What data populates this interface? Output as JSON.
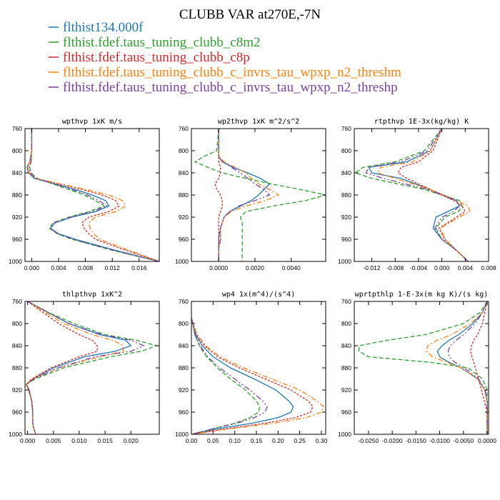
{
  "title": "CLUBB VAR at270E,-7N",
  "legend": [
    {
      "name": "flthist134.000f",
      "color": "#1f77b4"
    },
    {
      "name": "flthist.fdef.taus_tuning_clubb_c8m2",
      "color": "#2ca02c"
    },
    {
      "name": "flthist.fdef.taus_tuning_clubb_c8p",
      "color": "#d62728"
    },
    {
      "name": "flthist.fdef.taus_tuning_clubb_c_invrs_tau_wpxp_n2_threshm",
      "color": "#ff7f0e"
    },
    {
      "name": "flthist.fdef.taus_tuning_clubb_c_invrs_tau_wpxp_n2_threshp",
      "color": "#7b3fa0"
    }
  ],
  "chart_data": [
    {
      "type": "line",
      "title": "wpthvp  1xK m/s",
      "xlim": [
        -0.001,
        0.019
      ],
      "ylim": [
        760,
        1000
      ],
      "xticks": [
        0,
        0.004,
        0.008,
        0.012,
        0.016
      ],
      "xtick_labels": [
        "0.000",
        "0.004",
        "0.008",
        "0.012",
        "0.016"
      ],
      "yticks": [
        760,
        800,
        840,
        880,
        920,
        960,
        1000
      ],
      "y": [
        760,
        800,
        820,
        830,
        840,
        850,
        870,
        880,
        890,
        900,
        910,
        920,
        930,
        940,
        950,
        960,
        980,
        1000
      ],
      "series": [
        {
          "values": [
            0.0,
            0.0,
            -0.0003,
            -0.0007,
            -0.0005,
            0.0004,
            0.0065,
            0.009,
            0.011,
            0.0115,
            0.0095,
            0.006,
            0.0035,
            0.0028,
            0.004,
            0.0065,
            0.0125,
            0.019
          ]
        },
        {
          "values": [
            0.0,
            0.0,
            -0.0001,
            -0.0003,
            -0.0001,
            0.0008,
            0.0055,
            0.0078,
            0.0095,
            0.0108,
            0.0085,
            0.0055,
            0.0032,
            0.0026,
            0.0038,
            0.006,
            0.012,
            0.019
          ]
        },
        {
          "values": [
            0.0,
            0.0,
            -0.0003,
            -0.0006,
            -0.0004,
            0.0006,
            0.0075,
            0.0105,
            0.0125,
            0.013,
            0.0115,
            0.0085,
            0.0075,
            0.0078,
            0.0085,
            0.0095,
            0.014,
            0.019
          ]
        },
        {
          "values": [
            0.0,
            0.0,
            -0.0003,
            -0.0006,
            -0.0004,
            0.0006,
            0.008,
            0.0115,
            0.0135,
            0.014,
            0.0125,
            0.0095,
            0.0085,
            0.0087,
            0.0092,
            0.0102,
            0.0145,
            0.019
          ]
        },
        {
          "values": [
            0.0,
            0.0,
            -0.0001,
            -0.0004,
            -0.0002,
            0.0007,
            0.006,
            0.0083,
            0.01,
            0.0112,
            0.009,
            0.0058,
            0.0034,
            0.0027,
            0.0039,
            0.0062,
            0.0122,
            0.019
          ]
        }
      ]
    },
    {
      "type": "line",
      "title": "wp2thvp  1xK m^2/s^2",
      "xlim": [
        -0.0015,
        0.0059
      ],
      "ylim": [
        760,
        1000
      ],
      "xticks": [
        0,
        0.002,
        0.004
      ],
      "xtick_labels": [
        "0.0000",
        "0.0020",
        "0.0040"
      ],
      "yticks": [
        760,
        800,
        840,
        880,
        920,
        960,
        1000
      ],
      "y": [
        760,
        800,
        810,
        820,
        830,
        840,
        850,
        860,
        870,
        880,
        890,
        900,
        910,
        920,
        930,
        940,
        960,
        980,
        1000
      ],
      "series": [
        {
          "values": [
            0.0,
            0.0,
            0.0,
            0.0002,
            0.0008,
            0.0016,
            0.0023,
            0.0028,
            0.0025,
            0.0022,
            0.0018,
            0.0012,
            0.0006,
            0.0003,
            0.0002,
            0.0001,
            0.0,
            0.0,
            0.0
          ]
        },
        {
          "values": [
            0.0,
            -0.0001,
            -0.0008,
            -0.0013,
            -0.0006,
            0.0002,
            0.0015,
            0.0029,
            0.0045,
            0.0059,
            0.0048,
            0.003,
            0.0015,
            0.0012,
            0.0013,
            0.0013,
            0.0013,
            0.0013,
            0.0013
          ]
        },
        {
          "values": [
            0.0,
            0.0,
            0.0,
            0.0,
            0.0001,
            0.0001,
            0.0,
            -0.0002,
            -0.0001,
            0.0001,
            0.0002,
            0.0002,
            0.0001,
            0.0,
            0.0,
            0.0,
            0.0,
            0.0,
            0.0
          ]
        },
        {
          "values": [
            0.0,
            0.0,
            0.0,
            0.0003,
            0.0009,
            0.0015,
            0.0018,
            0.0022,
            0.0028,
            0.0033,
            0.0026,
            0.0015,
            0.0007,
            0.0003,
            0.0002,
            0.0001,
            0.0001,
            0.0,
            0.0
          ]
        },
        {
          "values": [
            0.0,
            0.0,
            0.0,
            0.0002,
            0.0007,
            0.0012,
            0.0016,
            0.002,
            0.0025,
            0.0028,
            0.002,
            0.0011,
            0.0006,
            0.0003,
            0.0002,
            0.0001,
            0.0001,
            0.0,
            0.0
          ]
        }
      ]
    },
    {
      "type": "line",
      "title": "rtpthvp  1E-3x(kg/kg) K",
      "xlim": [
        -0.015,
        0.008
      ],
      "ylim": [
        760,
        1000
      ],
      "xticks": [
        -0.012,
        -0.008,
        -0.004,
        0,
        0.004,
        0.008
      ],
      "xtick_labels": [
        "-0.012",
        "-0.008",
        "-0.004",
        "0.000",
        "0.004",
        "0.008"
      ],
      "yticks": [
        760,
        800,
        840,
        880,
        920,
        960,
        1000
      ],
      "y": [
        760,
        800,
        820,
        830,
        840,
        850,
        870,
        890,
        900,
        910,
        920,
        940,
        960,
        980,
        1000
      ],
      "series": [
        {
          "values": [
            0.0,
            -0.002,
            -0.006,
            -0.0125,
            -0.012,
            -0.007,
            -0.002,
            0.0025,
            0.003,
            0.001,
            -0.001,
            -0.0015,
            0.0,
            0.0025,
            0.0045
          ]
        },
        {
          "values": [
            0.0,
            -0.003,
            -0.008,
            -0.0135,
            -0.0148,
            -0.012,
            -0.003,
            0.003,
            0.0035,
            0.0028,
            0.0005,
            -0.001,
            0.0,
            0.0025,
            0.0045
          ]
        },
        {
          "values": [
            0.0,
            -0.0015,
            -0.004,
            -0.007,
            -0.0075,
            -0.006,
            -0.002,
            0.002,
            0.0035,
            0.004,
            0.0025,
            -0.0005,
            0.0005,
            0.0025,
            0.0045
          ]
        },
        {
          "values": [
            0.0,
            -0.002,
            -0.005,
            -0.0105,
            -0.011,
            -0.008,
            -0.002,
            0.0025,
            0.0045,
            0.0048,
            0.003,
            -0.0003,
            0.0006,
            0.0025,
            0.0045
          ]
        },
        {
          "values": [
            0.0,
            -0.0025,
            -0.007,
            -0.0125,
            -0.013,
            -0.01,
            -0.0025,
            0.0025,
            0.003,
            0.002,
            0.0,
            -0.0012,
            0.0,
            0.0025,
            0.0045
          ]
        }
      ]
    },
    {
      "type": "line",
      "title": "thlpthvp  1xK^2",
      "xlim": [
        -0.0005,
        0.0255
      ],
      "ylim": [
        760,
        1000
      ],
      "xticks": [
        0,
        0.005,
        0.01,
        0.015,
        0.02
      ],
      "xtick_labels": [
        "0.000",
        "0.005",
        "0.010",
        "0.015",
        "0.020"
      ],
      "yticks": [
        760,
        800,
        840,
        880,
        920,
        960,
        1000
      ],
      "y": [
        760,
        780,
        800,
        820,
        830,
        840,
        850,
        860,
        880,
        900,
        910,
        920,
        940,
        960,
        980,
        990,
        1000
      ],
      "series": [
        {
          "values": [
            0.0,
            0.004,
            0.008,
            0.014,
            0.019,
            0.02,
            0.017,
            0.011,
            0.005,
            0.001,
            -0.0002,
            0.0003,
            0.0008,
            0.001,
            0.001,
            0.0012,
            0.0016
          ]
        },
        {
          "values": [
            0.0,
            0.004,
            0.009,
            0.015,
            0.021,
            0.025,
            0.022,
            0.016,
            0.007,
            0.0015,
            -0.0003,
            0.0002,
            0.0008,
            0.001,
            0.001,
            0.0012,
            0.0016
          ]
        },
        {
          "values": [
            0.0,
            0.003,
            0.006,
            0.01,
            0.0125,
            0.0135,
            0.0135,
            0.01,
            0.0045,
            0.0008,
            -0.0003,
            0.0002,
            0.0008,
            0.001,
            0.001,
            0.0012,
            0.0016
          ]
        },
        {
          "values": [
            0.0,
            0.0035,
            0.007,
            0.0125,
            0.0165,
            0.0185,
            0.0185,
            0.014,
            0.006,
            0.001,
            -0.0003,
            0.0002,
            0.0008,
            0.001,
            0.001,
            0.0012,
            0.0016
          ]
        },
        {
          "values": [
            0.0,
            0.004,
            0.008,
            0.0145,
            0.02,
            0.0225,
            0.02,
            0.013,
            0.006,
            0.0012,
            -0.0002,
            0.0003,
            0.0008,
            0.001,
            0.001,
            0.0012,
            0.0016
          ]
        }
      ]
    },
    {
      "type": "line",
      "title": "wp4  1x(m^4)/(s^4)",
      "xlim": [
        0,
        0.31
      ],
      "ylim": [
        760,
        1000
      ],
      "xticks": [
        0,
        0.05,
        0.1,
        0.15,
        0.2,
        0.25,
        0.3
      ],
      "xtick_labels": [
        "0.00",
        "0.05",
        "0.10",
        "0.15",
        "0.20",
        "0.25",
        "0.30"
      ],
      "yticks": [
        760,
        800,
        840,
        880,
        920,
        960,
        1000
      ],
      "y": [
        790,
        800,
        820,
        840,
        860,
        880,
        900,
        920,
        940,
        950,
        960,
        970,
        980,
        990,
        1000
      ],
      "series": [
        {
          "values": [
            0.0,
            0.003,
            0.01,
            0.025,
            0.05,
            0.09,
            0.145,
            0.195,
            0.225,
            0.235,
            0.23,
            0.2,
            0.14,
            0.06,
            0.0
          ]
        },
        {
          "values": [
            0.0,
            0.003,
            0.008,
            0.018,
            0.035,
            0.06,
            0.09,
            0.125,
            0.15,
            0.158,
            0.155,
            0.135,
            0.1,
            0.05,
            0.0
          ]
        },
        {
          "values": [
            0.0,
            0.004,
            0.012,
            0.03,
            0.06,
            0.11,
            0.17,
            0.23,
            0.27,
            0.28,
            0.275,
            0.24,
            0.17,
            0.08,
            0.0
          ]
        },
        {
          "values": [
            0.0,
            0.004,
            0.013,
            0.033,
            0.066,
            0.12,
            0.185,
            0.25,
            0.29,
            0.305,
            0.3,
            0.265,
            0.19,
            0.09,
            0.0
          ]
        },
        {
          "values": [
            0.0,
            0.003,
            0.008,
            0.02,
            0.038,
            0.065,
            0.1,
            0.135,
            0.165,
            0.175,
            0.17,
            0.145,
            0.105,
            0.05,
            0.0
          ]
        }
      ]
    },
    {
      "type": "line",
      "title": "wprtpthlp  1-E-3x(m kg K)/(s kg)",
      "xlim": [
        -0.028,
        0.0003
      ],
      "ylim": [
        760,
        1000
      ],
      "xticks": [
        -0.025,
        -0.02,
        -0.015,
        -0.01,
        -0.005,
        0
      ],
      "xtick_labels": [
        "-0.0250",
        "-0.0200",
        "-0.0150",
        "-0.0100",
        "-0.0050",
        "0.0000"
      ],
      "yticks": [
        760,
        800,
        840,
        880,
        920,
        960,
        1000
      ],
      "y": [
        760,
        780,
        800,
        820,
        830,
        840,
        850,
        860,
        870,
        880,
        900,
        920,
        940,
        960,
        980,
        1000
      ],
      "series": [
        {
          "values": [
            0.0,
            -0.001,
            -0.003,
            -0.006,
            -0.008,
            -0.0095,
            -0.0105,
            -0.01,
            -0.008,
            -0.0055,
            -0.002,
            -0.0005,
            0.0,
            0.0,
            0.0,
            0.0
          ]
        },
        {
          "values": [
            0.0,
            -0.0015,
            -0.005,
            -0.013,
            -0.021,
            -0.027,
            -0.027,
            -0.025,
            -0.012,
            -0.004,
            -0.001,
            0.0,
            0.0,
            0.0,
            0.0,
            0.0
          ]
        },
        {
          "values": [
            0.0,
            -0.0005,
            -0.001,
            -0.002,
            -0.0028,
            -0.0033,
            -0.0035,
            -0.0032,
            -0.0028,
            -0.0025,
            -0.0018,
            -0.0012,
            -0.0006,
            0.0,
            0.0,
            0.0
          ]
        },
        {
          "values": [
            0.0,
            -0.001,
            -0.0035,
            -0.0075,
            -0.0105,
            -0.0125,
            -0.0128,
            -0.0115,
            -0.0085,
            -0.0055,
            -0.002,
            -0.0005,
            0.0,
            0.0,
            0.0,
            0.0
          ]
        },
        {
          "values": [
            0.0,
            -0.001,
            -0.0025,
            -0.005,
            -0.0065,
            -0.0078,
            -0.0082,
            -0.008,
            -0.0068,
            -0.0048,
            -0.0018,
            -0.0004,
            0.0,
            0.0,
            0.0,
            0.0
          ]
        }
      ]
    }
  ]
}
